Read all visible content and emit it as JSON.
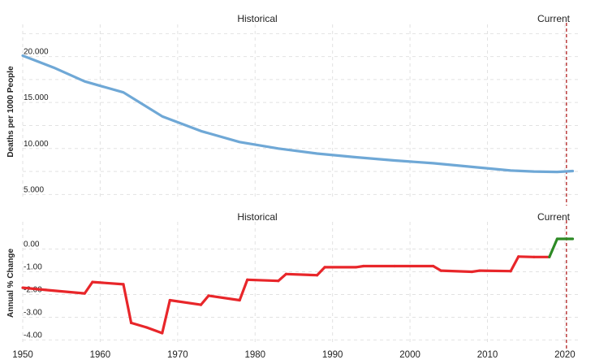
{
  "chart_data": [
    {
      "type": "line",
      "ylabel": "Deaths per 1000 People",
      "section_left_label": "Historical",
      "section_right_label": "Current",
      "ylim": [
        4.5,
        23.5
      ],
      "xlim": [
        1950,
        2022
      ],
      "y_ticks": [
        5,
        10,
        15,
        20
      ],
      "y_tick_labels": [
        "5.000",
        "10.000",
        "15.000",
        "20.000"
      ],
      "grid": true,
      "series_color": "#6fa8d6",
      "series": [
        {
          "x": [
            1950,
            1954,
            1958,
            1963,
            1968,
            1973,
            1978,
            1983,
            1988,
            1993,
            1998,
            2003,
            2008,
            2013,
            2016,
            2019,
            2021
          ],
          "values": [
            20.1,
            18.8,
            17.3,
            16.1,
            13.5,
            11.9,
            10.7,
            10.0,
            9.45,
            9.05,
            8.7,
            8.4,
            8.0,
            7.6,
            7.5,
            7.45,
            7.55
          ]
        }
      ]
    },
    {
      "type": "line",
      "ylabel": "Annual % Change",
      "section_left_label": "Historical",
      "section_right_label": "Current",
      "ylim": [
        -4.2,
        1.2
      ],
      "xlim": [
        1950,
        2022
      ],
      "y_ticks": [
        -4,
        -3,
        -2,
        -1,
        0
      ],
      "y_tick_labels": [
        "-4.00",
        "-3.00",
        "-2.00",
        "-1.00",
        "0.00"
      ],
      "x_ticks": [
        1950,
        1960,
        1970,
        1980,
        1990,
        2000,
        2010,
        2020
      ],
      "x_tick_labels": [
        "1950",
        "1960",
        "1970",
        "1980",
        "1990",
        "2000",
        "2010",
        "2020"
      ],
      "grid": true,
      "negative_color": "#e8262a",
      "positive_color": "#2d8a25",
      "current_marker_color": "#b22222",
      "current_x": 2020.2,
      "series": [
        {
          "x": [
            1950,
            1953,
            1958,
            1959,
            1963,
            1964,
            1966,
            1968,
            1969,
            1973,
            1974,
            1978,
            1979,
            1983,
            1984,
            1988,
            1989,
            1993,
            1994,
            1998,
            2003,
            2004,
            2008,
            2009,
            2013,
            2014,
            2016,
            2018,
            2019,
            2021
          ],
          "values": [
            -1.7,
            -1.8,
            -1.95,
            -1.45,
            -1.55,
            -3.25,
            -3.45,
            -3.7,
            -2.25,
            -2.45,
            -2.05,
            -2.25,
            -1.35,
            -1.4,
            -1.1,
            -1.15,
            -0.8,
            -0.8,
            -0.75,
            -0.75,
            -0.75,
            -0.95,
            -1.0,
            -0.95,
            -0.97,
            -0.33,
            -0.35,
            -0.35,
            0.45,
            0.45
          ]
        }
      ]
    }
  ]
}
